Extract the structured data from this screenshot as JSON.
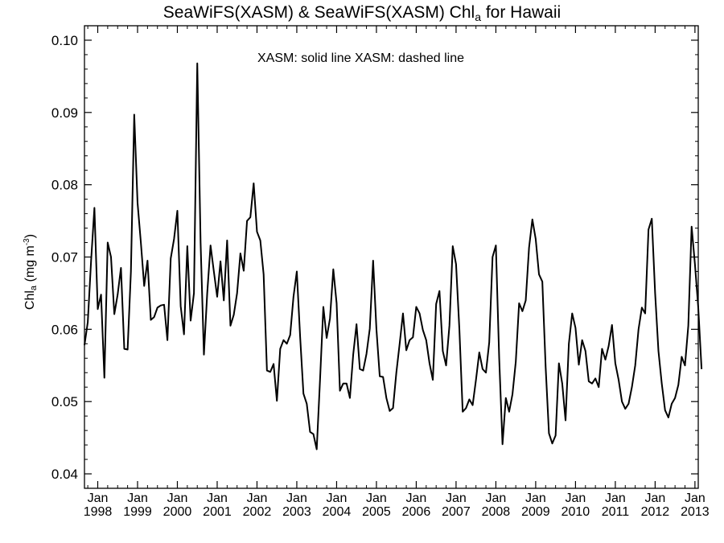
{
  "title": {
    "main": "SeaWiFS(XASM) & SeaWiFS(XASM)  Chl",
    "sub": "a",
    "tail": " for Hawaii"
  },
  "annotation": "XASM: solid line   XASM: dashed line",
  "ylabel": {
    "main": "Chl",
    "sub": "a",
    "units_open": " (mg m",
    "units_sup": "-3",
    "units_close": ")"
  },
  "chart_data": {
    "type": "line",
    "title": "SeaWiFS(XASM) & SeaWiFS(XASM)  Chl_a for Hawaii",
    "ylabel": "Chl_a (mg m^-3)",
    "xlabel": "",
    "ylim": [
      0.038,
      0.102
    ],
    "xlim": [
      "1997-09",
      "2013-02"
    ],
    "yticks": [
      0.04,
      0.05,
      0.06,
      0.07,
      0.08,
      0.09,
      0.1
    ],
    "ytick_labels": [
      "0.04",
      "0.05",
      "0.06",
      "0.07",
      "0.08",
      "0.09",
      "0.10"
    ],
    "xtick_month_label": "Jan",
    "xtick_year_labels": [
      "1998",
      "1999",
      "2000",
      "2001",
      "2002",
      "2003",
      "2004",
      "2005",
      "2006",
      "2007",
      "2008",
      "2009",
      "2010",
      "2011",
      "2012",
      "2013"
    ],
    "grid": false,
    "series": [
      {
        "name": "XASM",
        "style": "solid",
        "color": "#000000",
        "start": "1997-09",
        "values": [
          0.0578,
          0.061,
          0.0695,
          0.0768,
          0.0628,
          0.0648,
          0.0533,
          0.072,
          0.07,
          0.0621,
          0.0648,
          0.0685,
          0.0573,
          0.0572,
          0.068,
          0.0897,
          0.0775,
          0.072,
          0.066,
          0.0695,
          0.0613,
          0.0617,
          0.063,
          0.0633,
          0.0634,
          0.0585,
          0.0698,
          0.0725,
          0.0764,
          0.0632,
          0.0593,
          0.0715,
          0.0612,
          0.065,
          0.0968,
          0.072,
          0.0565,
          0.065,
          0.0716,
          0.068,
          0.0645,
          0.0694,
          0.064,
          0.0723,
          0.0605,
          0.062,
          0.065,
          0.0705,
          0.0681,
          0.075,
          0.0755,
          0.0802,
          0.0735,
          0.0723,
          0.0676,
          0.0543,
          0.0541,
          0.0552,
          0.0501,
          0.0573,
          0.0585,
          0.058,
          0.0592,
          0.0645,
          0.068,
          0.059,
          0.0511,
          0.0497,
          0.0458,
          0.0455,
          0.0434,
          0.053,
          0.0631,
          0.0588,
          0.0615,
          0.0683,
          0.0636,
          0.0515,
          0.0525,
          0.0525,
          0.0505,
          0.0565,
          0.0607,
          0.0545,
          0.0543,
          0.0566,
          0.0601,
          0.0695,
          0.06,
          0.0535,
          0.0534,
          0.0505,
          0.0487,
          0.0491,
          0.054,
          0.058,
          0.0622,
          0.0571,
          0.0585,
          0.0589,
          0.0631,
          0.0622,
          0.0599,
          0.0585,
          0.0553,
          0.053,
          0.0635,
          0.0653,
          0.057,
          0.055,
          0.0605,
          0.0715,
          0.069,
          0.06,
          0.0486,
          0.0491,
          0.0503,
          0.0495,
          0.053,
          0.0568,
          0.0545,
          0.054,
          0.0582,
          0.07,
          0.0716,
          0.056,
          0.0441,
          0.0505,
          0.0486,
          0.051,
          0.0555,
          0.0636,
          0.0625,
          0.064,
          0.0713,
          0.0752,
          0.0725,
          0.0676,
          0.0666,
          0.0548,
          0.0456,
          0.0442,
          0.0453,
          0.0553,
          0.0525,
          0.0474,
          0.058,
          0.0622,
          0.0602,
          0.0551,
          0.0585,
          0.057,
          0.0528,
          0.0525,
          0.0532,
          0.052,
          0.0573,
          0.0558,
          0.0577,
          0.0606,
          0.0553,
          0.053,
          0.05,
          0.049,
          0.0497,
          0.052,
          0.055,
          0.06,
          0.063,
          0.0622,
          0.0738,
          0.0753,
          0.065,
          0.057,
          0.0525,
          0.0488,
          0.0478,
          0.0497,
          0.0505,
          0.0523,
          0.0562,
          0.055,
          0.0605,
          0.0742,
          0.069,
          0.063,
          0.0545
        ]
      }
    ]
  }
}
